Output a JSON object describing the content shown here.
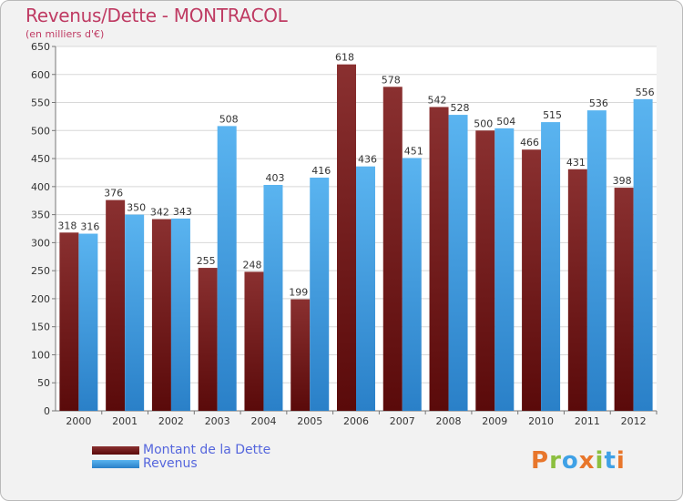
{
  "chart_data": {
    "type": "bar",
    "title": "Revenus/Dette - MONTRACOL",
    "subtitle": "(en milliers d'€)",
    "categories": [
      "2000",
      "2001",
      "2002",
      "2003",
      "2004",
      "2005",
      "2006",
      "2007",
      "2008",
      "2009",
      "2010",
      "2011",
      "2012"
    ],
    "series": [
      {
        "name": "Montant de la Dette",
        "values": [
          318,
          376,
          342,
          255,
          248,
          199,
          618,
          578,
          542,
          500,
          466,
          431,
          398
        ],
        "color": "#7b1f1f"
      },
      {
        "name": "Revenus",
        "values": [
          316,
          350,
          343,
          508,
          403,
          416,
          436,
          451,
          528,
          504,
          515,
          536,
          556
        ],
        "color": "#3fa1e6"
      }
    ],
    "ylim": [
      0,
      650
    ],
    "yticks": [
      0,
      50,
      100,
      150,
      200,
      250,
      300,
      350,
      400,
      450,
      500,
      550,
      600,
      650
    ],
    "grid": true,
    "legend": "bottom-left"
  },
  "logo": {
    "text": "Proxiti",
    "colors": [
      "#e8762b",
      "#8cbf3f",
      "#3fa1e6",
      "#e8762b",
      "#8cbf3f",
      "#3fa1e6",
      "#e8762b"
    ]
  }
}
